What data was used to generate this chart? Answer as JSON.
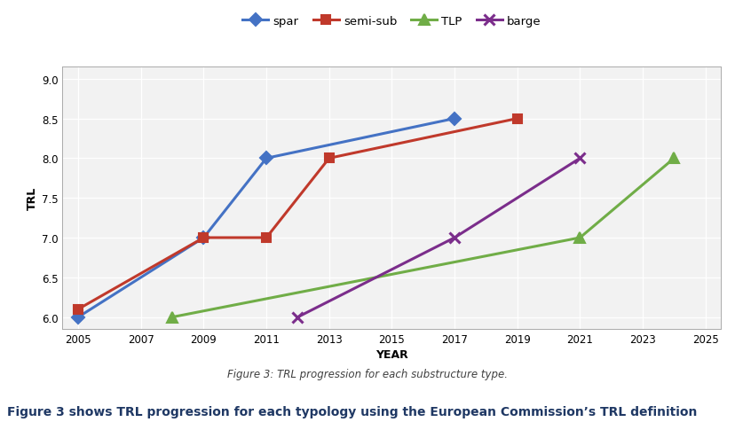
{
  "spar": {
    "x": [
      2005,
      2009,
      2011,
      2017
    ],
    "y": [
      6.0,
      7.0,
      8.0,
      8.5
    ],
    "color": "#4472C4",
    "marker": "D",
    "label": "spar",
    "markersize": 7
  },
  "semi_sub": {
    "x": [
      2005,
      2009,
      2011,
      2013,
      2019
    ],
    "y": [
      6.1,
      7.0,
      7.0,
      8.0,
      8.5
    ],
    "color": "#C0392B",
    "marker": "s",
    "label": "semi-sub",
    "markersize": 7
  },
  "TLP": {
    "x": [
      2008,
      2021,
      2024
    ],
    "y": [
      6.0,
      7.0,
      8.0
    ],
    "color": "#70AD47",
    "marker": "^",
    "label": "TLP",
    "markersize": 8
  },
  "barge": {
    "x": [
      2012,
      2017,
      2021
    ],
    "y": [
      6.0,
      7.0,
      8.0
    ],
    "color": "#7B2D8B",
    "marker": "x",
    "label": "barge",
    "markersize": 8
  },
  "series_order": [
    "spar",
    "semi_sub",
    "TLP",
    "barge"
  ],
  "xlim": [
    2004.5,
    2025.5
  ],
  "ylim": [
    5.85,
    9.15
  ],
  "xticks": [
    2005,
    2007,
    2009,
    2011,
    2013,
    2015,
    2017,
    2019,
    2021,
    2023,
    2025
  ],
  "yticks": [
    6.0,
    6.5,
    7.0,
    7.5,
    8.0,
    8.5,
    9.0
  ],
  "xlabel": "YEAR",
  "ylabel": "TRL",
  "caption": "Figure 3: TRL progression for each substructure type.",
  "bottom_text": "Figure 3 shows TRL progression for each typology using the European Commission’s TRL definition",
  "bg_color": "#FFFFFF",
  "plot_bg_color": "#F2F2F2",
  "grid_color": "#FFFFFF",
  "linewidth": 2.2,
  "caption_color": "#404040",
  "bottom_text_color": "#1F3864"
}
